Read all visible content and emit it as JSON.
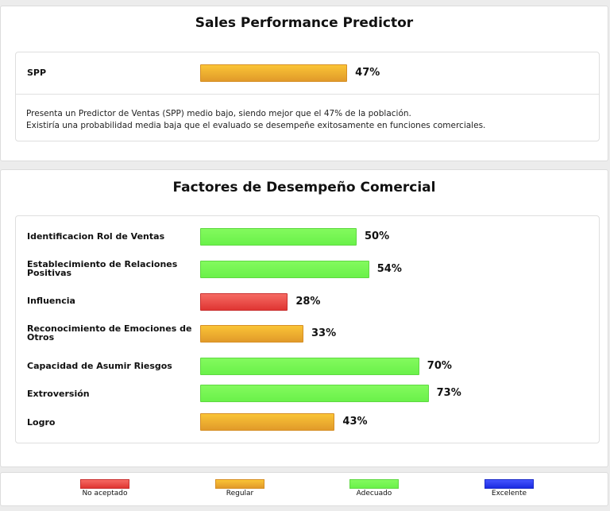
{
  "spp_section": {
    "title": "Sales Performance Predictor",
    "label": "SPP",
    "value_label": "47%",
    "description_line1": "Presenta un Predictor de Ventas (SPP) medio bajo, siendo mejor que el 47% de la población.",
    "description_line2": "Existiría una probabilidad media baja que el evaluado se desempeñe exitosamente en funciones comerciales."
  },
  "factors_section": {
    "title": "Factores de Desempeño Comercial"
  },
  "legend": [
    {
      "label": "No aceptado",
      "color": "#e04140"
    },
    {
      "label": "Regular",
      "color": "#eaa62e"
    },
    {
      "label": "Adecuado",
      "color": "#74f553"
    },
    {
      "label": "Excelente",
      "color": "#2233ee"
    }
  ],
  "chart_data": [
    {
      "type": "bar",
      "orientation": "horizontal",
      "title": "Sales Performance Predictor",
      "categories": [
        "SPP"
      ],
      "values": [
        47
      ],
      "value_labels": [
        "47%"
      ],
      "levels": [
        "Regular"
      ],
      "xlim": [
        0,
        100
      ]
    },
    {
      "type": "bar",
      "orientation": "horizontal",
      "title": "Factores de Desempeño Comercial",
      "categories": [
        "Identificacion Rol de Ventas",
        "Establecimiento de Relaciones Positivas",
        "Influencia",
        "Reconocimiento de Emociones de Otros",
        "Capacidad de Asumir Riesgos",
        "Extroversión",
        "Logro"
      ],
      "values": [
        50,
        54,
        28,
        33,
        70,
        73,
        43
      ],
      "value_labels": [
        "50%",
        "54%",
        "28%",
        "33%",
        "70%",
        "73%",
        "43%"
      ],
      "levels": [
        "Adecuado",
        "Adecuado",
        "No aceptado",
        "Regular",
        "Adecuado",
        "Adecuado",
        "Regular"
      ],
      "xlim": [
        0,
        100
      ]
    }
  ]
}
